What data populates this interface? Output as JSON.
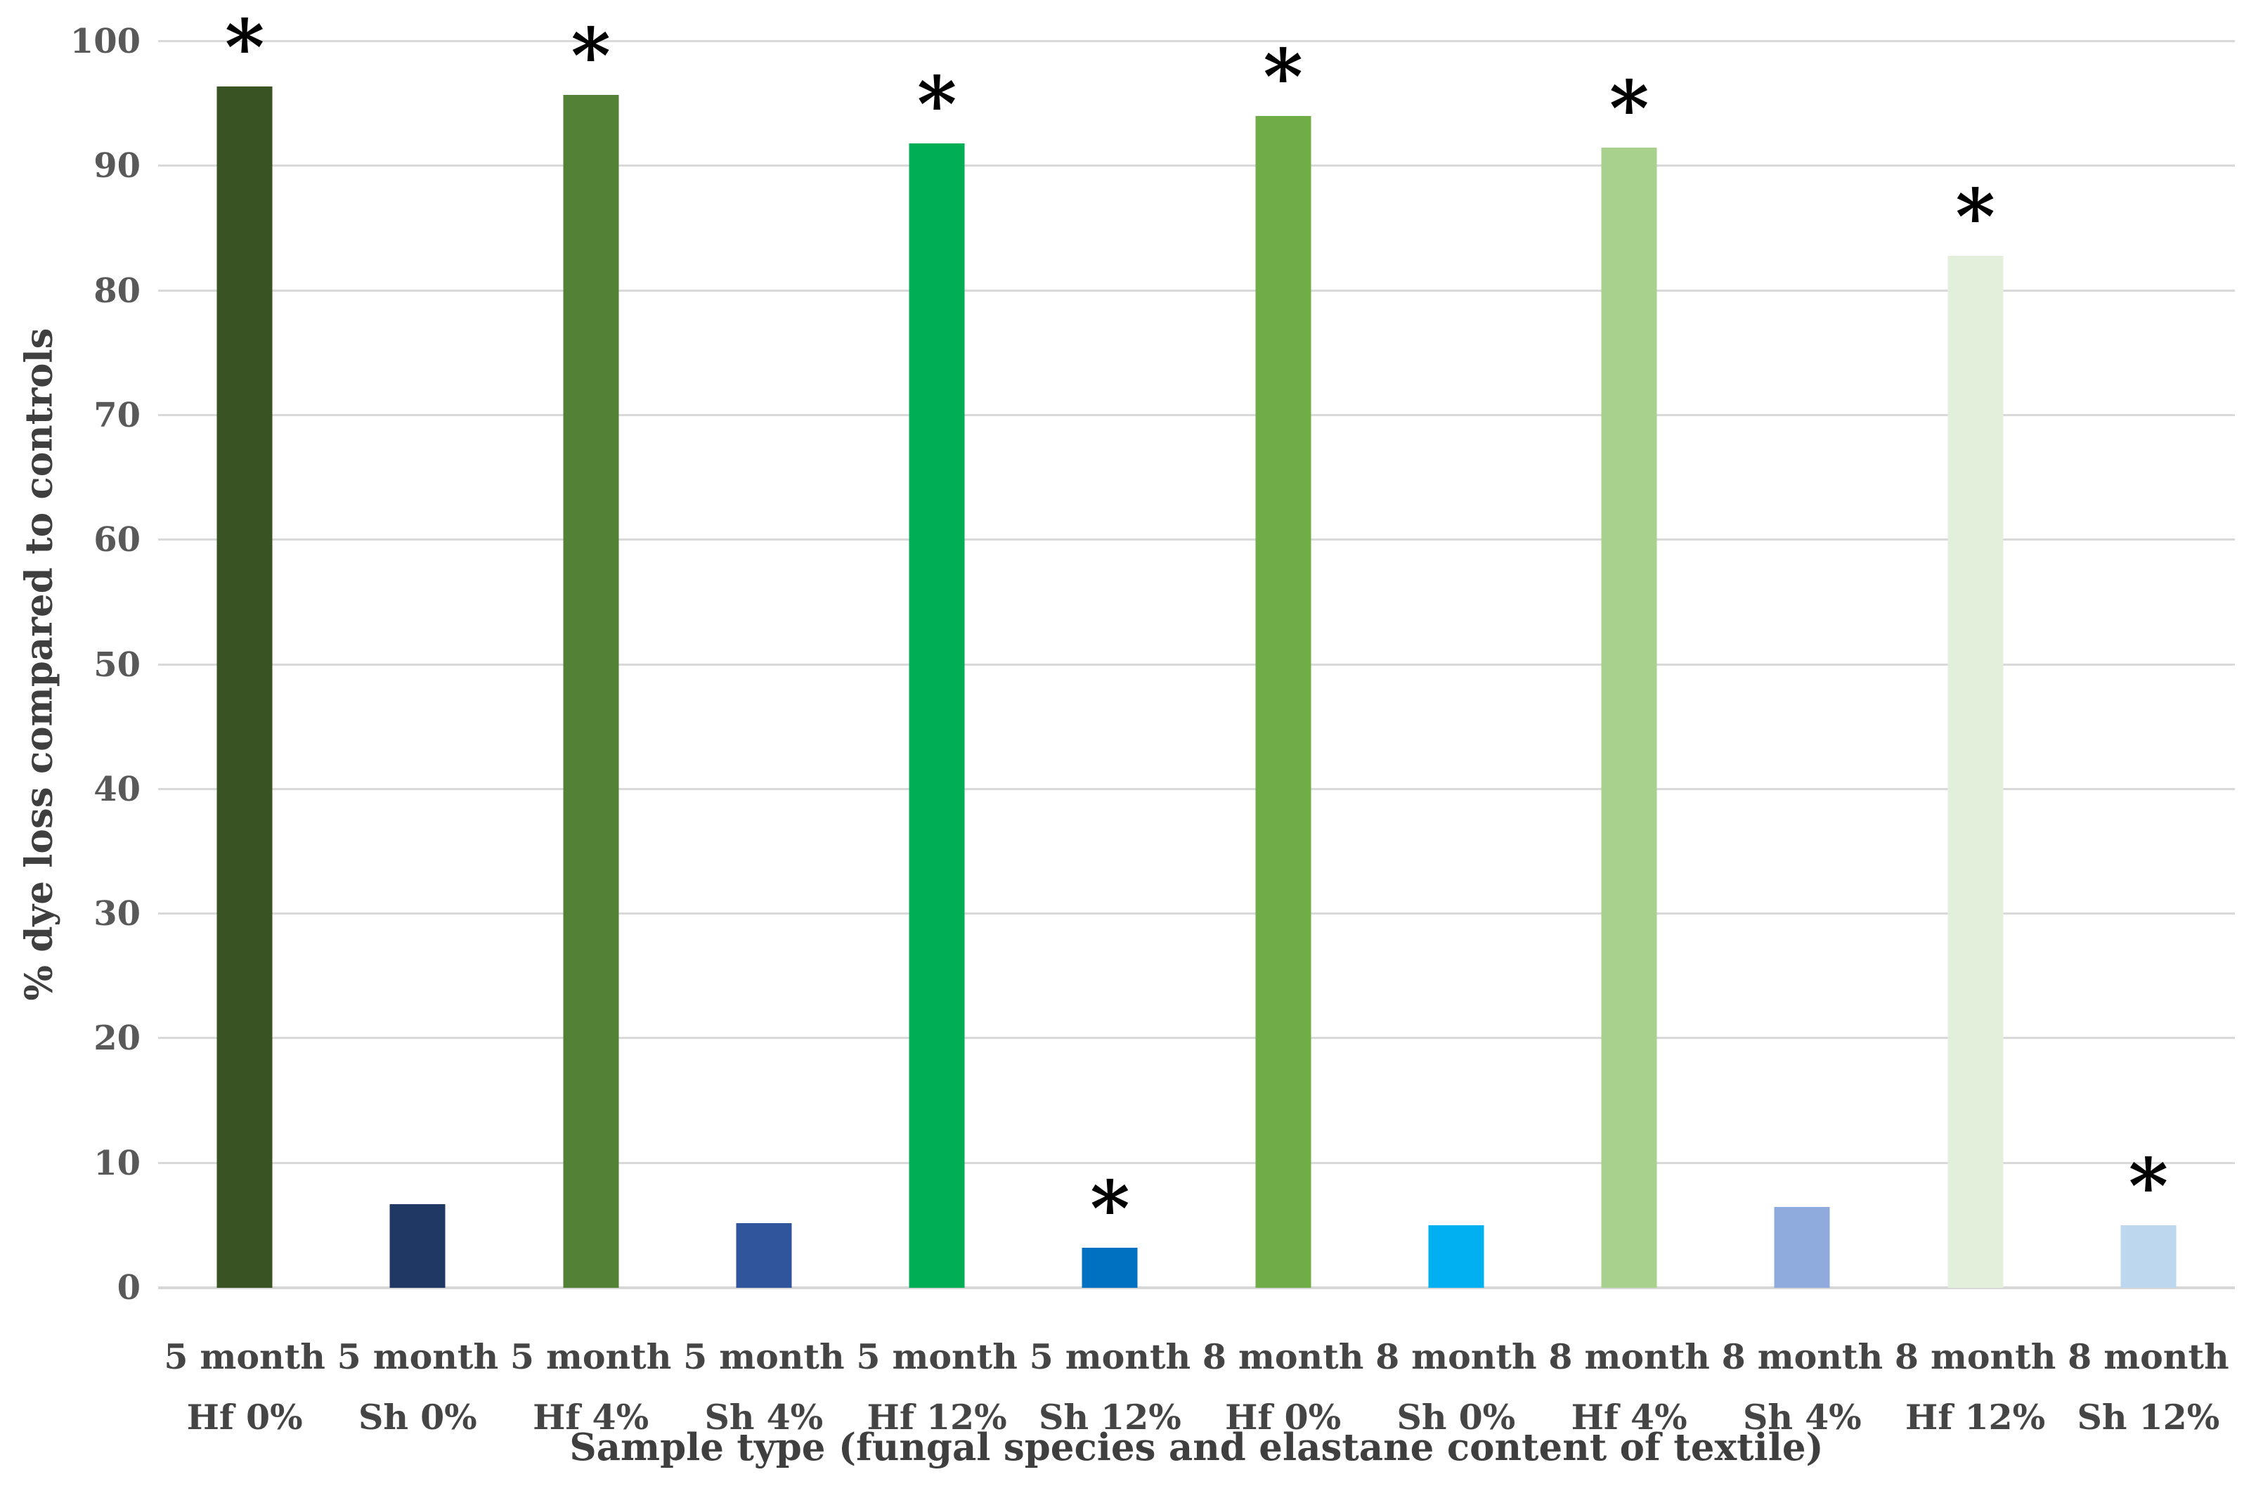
{
  "figure": {
    "background": "#ffffff"
  },
  "chart_data": {
    "type": "bar",
    "title": "",
    "xlabel": "Sample type (fungal species and elastane content of textile)",
    "ylabel": "% dye loss compared to controls",
    "ylim": [
      0,
      100
    ],
    "y_ticks": [
      0,
      10,
      20,
      30,
      40,
      50,
      60,
      70,
      80,
      90,
      100
    ],
    "grid": "horizontal",
    "legend": "none",
    "categories": [
      [
        "5 month",
        "Hf 0%"
      ],
      [
        "5 month",
        "Sh 0%"
      ],
      [
        "5 month",
        "Hf 4%"
      ],
      [
        "5 month",
        "Sh 4%"
      ],
      [
        "5 month",
        "Hf 12%"
      ],
      [
        "5 month",
        "Sh 12%"
      ],
      [
        "8 month",
        "Hf 0%"
      ],
      [
        "8 month",
        "Sh 0%"
      ],
      [
        "8 month",
        "Hf 4%"
      ],
      [
        "8 month",
        "Sh 4%"
      ],
      [
        "8 month",
        "Hf 12%"
      ],
      [
        "8 month",
        "Sh 12%"
      ]
    ],
    "values": [
      96.4,
      6.7,
      95.7,
      5.2,
      91.8,
      3.2,
      94.0,
      5.0,
      91.5,
      6.5,
      82.8,
      5.0
    ],
    "bar_colors": [
      "#3a5323",
      "#1f3864",
      "#538135",
      "#30559c",
      "#00ae55",
      "#0070c0",
      "#70ad47",
      "#00b0f0",
      "#a9d18e",
      "#8faadc",
      "#e2efda",
      "#bdd7ee"
    ],
    "significance_marker": "*",
    "significant": [
      true,
      false,
      true,
      false,
      true,
      true,
      true,
      false,
      true,
      false,
      true,
      true
    ]
  },
  "style": {
    "grid_color": "#d9d9d9",
    "axis_line_color": "#d6d6d6",
    "tick_label_color": "#595959",
    "category_label_color": "#454545",
    "axis_title_color": "#3f3f3f",
    "marker_color": "#000000"
  }
}
